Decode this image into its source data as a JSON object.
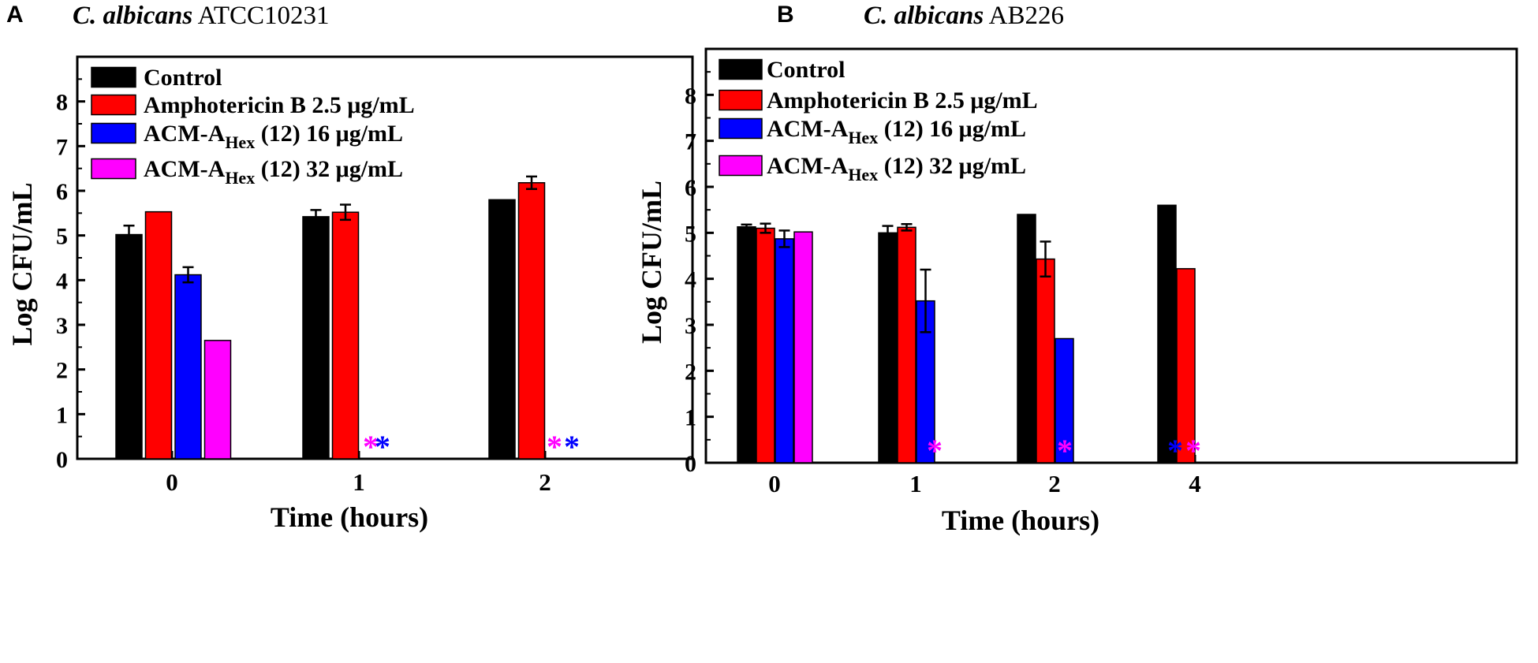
{
  "chart_data": [
    {
      "panel": "A",
      "type": "bar",
      "title_italic": "C. albicans",
      "title_strain": "ATCC10231",
      "xlabel": "Time (hours)",
      "ylabel": "Log CFU/mL",
      "ylim": [
        0,
        9
      ],
      "yticks": [
        "0",
        "1",
        "2",
        "3",
        "4",
        "5",
        "6",
        "7",
        "8"
      ],
      "categories": [
        "0",
        "1",
        "2"
      ],
      "legend_position": "top-left",
      "series": [
        {
          "name": "Control",
          "color": "#000000",
          "values": [
            5.02,
            5.42,
            5.8
          ],
          "errors": [
            0.2,
            0.15,
            0
          ]
        },
        {
          "name": "Amphotericin B 2.5 μg/mL",
          "color": "#ff0000",
          "values": [
            5.53,
            5.52,
            6.18
          ],
          "errors": [
            0,
            0.17,
            0.14
          ]
        },
        {
          "name": "ACM-A_Hex (12) 16 μg/mL",
          "color": "#0000ff",
          "values": [
            4.12,
            null,
            null
          ],
          "errors": [
            0.17,
            0,
            0
          ]
        },
        {
          "name": "ACM-A_Hex (12) 32 μg/mL",
          "color": "#ff00ff",
          "values": [
            2.65,
            null,
            null
          ],
          "errors": [
            0,
            0,
            0
          ]
        }
      ],
      "legend": {
        "control": "Control",
        "amphotericin": "Amphotericin B 2.5 μg/mL",
        "acm_prefix": "ACM-A",
        "acm_sub": "Hex",
        "acm16_suffix": " (12) 16 μg/mL",
        "acm32_suffix": " (12) 32 μg/mL"
      },
      "annotations": [
        {
          "category": 1,
          "text": "*",
          "series": "ACM-A_Hex (12) 32 μg/mL",
          "color": "#ff00ff"
        },
        {
          "category": 1,
          "text": "*",
          "series": "ACM-A_Hex (12) 16 μg/mL",
          "color": "#0000ff"
        },
        {
          "category": 2,
          "text": "*",
          "series": "ACM-A_Hex (12) 32 μg/mL",
          "color": "#ff00ff"
        },
        {
          "category": 2,
          "text": "*",
          "series": "ACM-A_Hex (12) 16 μg/mL",
          "color": "#0000ff"
        }
      ]
    },
    {
      "panel": "B",
      "type": "bar",
      "title_italic": "C. albicans",
      "title_strain": "AB226",
      "xlabel": "Time (hours)",
      "ylabel": "Log CFU/mL",
      "ylim": [
        0,
        9
      ],
      "yticks": [
        "0",
        "1",
        "2",
        "3",
        "4",
        "5",
        "6",
        "7",
        "8"
      ],
      "categories": [
        "0",
        "1",
        "2",
        "4"
      ],
      "legend_position": "top-left",
      "series": [
        {
          "name": "Control",
          "color": "#000000",
          "values": [
            5.13,
            5.0,
            5.4,
            5.6
          ],
          "errors": [
            0.05,
            0.15,
            0,
            0
          ]
        },
        {
          "name": "Amphotericin B 2.5 μg/mL",
          "color": "#ff0000",
          "values": [
            5.1,
            5.12,
            4.43,
            4.22
          ],
          "errors": [
            0.1,
            0.07,
            0.38,
            0
          ]
        },
        {
          "name": "ACM-A_Hex (12) 16 μg/mL",
          "color": "#0000ff",
          "values": [
            4.87,
            3.52,
            2.7,
            null
          ],
          "errors": [
            0.18,
            0.68,
            0,
            0
          ]
        },
        {
          "name": "ACM-A_Hex (12) 32 μg/mL",
          "color": "#ff00ff",
          "values": [
            5.02,
            null,
            null,
            null
          ],
          "errors": [
            0,
            0,
            0,
            0
          ]
        }
      ],
      "legend": {
        "control": "Control",
        "amphotericin": "Amphotericin B 2.5 μg/mL",
        "acm_prefix": "ACM-A",
        "acm_sub": "Hex",
        "acm16_suffix": " (12) 16 μg/mL",
        "acm32_suffix": " (12) 32 μg/mL"
      },
      "annotations": [
        {
          "category": 1,
          "text": "*",
          "series": "ACM-A_Hex (12) 32 μg/mL",
          "color": "#ff00ff"
        },
        {
          "category": 2,
          "text": "*",
          "series": "ACM-A_Hex (12) 32 μg/mL",
          "color": "#ff00ff"
        },
        {
          "category": 3,
          "text": "*",
          "series": "ACM-A_Hex (12) 16 μg/mL",
          "color": "#0000ff"
        },
        {
          "category": 3,
          "text": "*",
          "series": "ACM-A_Hex (12) 32 μg/mL",
          "color": "#ff00ff"
        }
      ]
    }
  ]
}
